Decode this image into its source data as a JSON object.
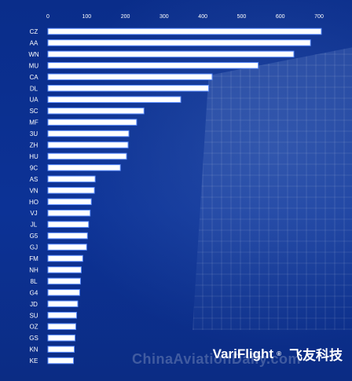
{
  "chart_data": {
    "type": "bar",
    "orientation": "horizontal",
    "title": "",
    "xlabel": "",
    "ylabel": "",
    "xlim": [
      0,
      700
    ],
    "x_ticks": [
      0,
      100,
      200,
      300,
      400,
      500,
      600,
      700
    ],
    "tick_labels": [
      "0",
      "100",
      "200",
      "300",
      "400",
      "500",
      "600",
      "700"
    ],
    "grid": false,
    "legend": "none",
    "categories": [
      "CZ",
      "AA",
      "WN",
      "MU",
      "CA",
      "DL",
      "UA",
      "SC",
      "MF",
      "3U",
      "ZH",
      "HU",
      "9C",
      "AS",
      "VN",
      "HO",
      "VJ",
      "JL",
      "G5",
      "GJ",
      "FM",
      "NH",
      "8L",
      "G4",
      "JD",
      "SU",
      "OZ",
      "GS",
      "KN",
      "KE"
    ],
    "values": [
      706,
      678,
      635,
      543,
      424,
      415,
      343,
      248,
      229,
      209,
      207,
      203,
      187,
      122,
      120,
      112,
      109,
      105,
      102,
      100,
      90,
      86,
      84,
      82,
      77,
      74,
      72,
      70,
      68,
      66
    ],
    "colors": {
      "bar_fill": "#ffffff",
      "bar_glow": "#5a8cff",
      "background": "#0b2f8f"
    }
  },
  "brand": {
    "name": "VariFlight",
    "reg_mark": "®",
    "chinese": "飞友科技"
  },
  "watermark": "ChinaAviationDaily.com"
}
